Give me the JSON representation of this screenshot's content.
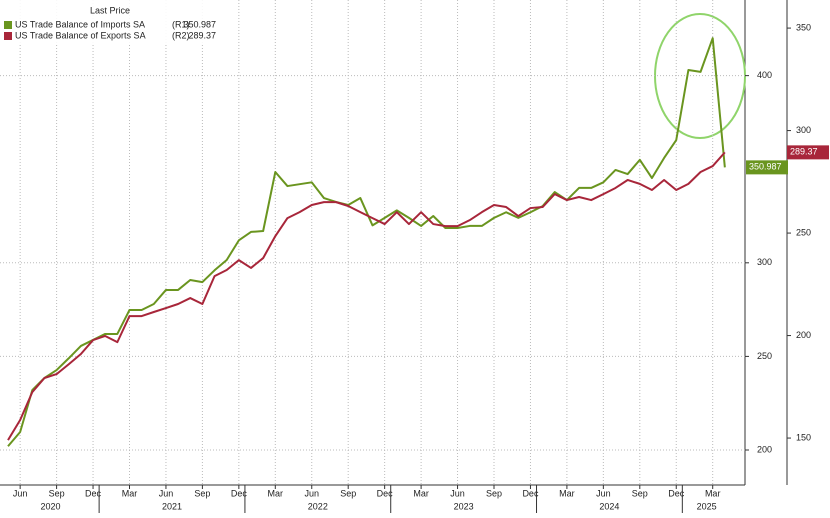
{
  "chart_data": {
    "type": "line",
    "legend_title": "Last Price",
    "categories": [
      null,
      "Jun",
      null,
      null,
      "Sep",
      null,
      null,
      "Dec",
      null,
      null,
      "Mar",
      null,
      null,
      "Jun",
      null,
      null,
      "Sep",
      null,
      null,
      "Dec",
      null,
      null,
      "Mar",
      null,
      null,
      "Jun",
      null,
      null,
      "Sep",
      null,
      null,
      "Dec",
      null,
      null,
      "Mar",
      null,
      null,
      "Jun",
      null,
      null,
      "Sep",
      null,
      null,
      "Dec",
      null,
      null,
      "Mar",
      null,
      null,
      "Jun",
      null,
      null,
      "Sep",
      null,
      null,
      "Dec",
      null,
      null,
      "Mar",
      null
    ],
    "years": [
      "2020",
      "2021",
      "2022",
      "2023",
      "2024",
      "2025"
    ],
    "series": [
      {
        "name": "US Trade Balance of Imports SA",
        "axis_tag": "(R1)",
        "color": "#6a951f",
        "axis": "y",
        "values": [
          202,
          209.6,
          232,
          238.5,
          242.7,
          249,
          255.6,
          258.8,
          262,
          262,
          274.8,
          274.8,
          278,
          285.5,
          285.5,
          290.8,
          289.7,
          296,
          301.5,
          312,
          316.5,
          317,
          348.5,
          341,
          342,
          343,
          334.6,
          332.5,
          330.9,
          334.6,
          320,
          324,
          328,
          324,
          319.7,
          325,
          318.6,
          318.6,
          319.7,
          319.7,
          324,
          327,
          324,
          327,
          330.3,
          337.8,
          333.5,
          340,
          340,
          343,
          349.6,
          347.4,
          355,
          345.3,
          356,
          365.6,
          403,
          402,
          420,
          350.987
        ]
      },
      {
        "name": "US Trade Balance of Exports SA",
        "axis_tag": "(R2)",
        "color": "#a8263a",
        "axis": "y2",
        "values": [
          149,
          158.8,
          172.4,
          179.3,
          181.2,
          186,
          191,
          197.8,
          199.8,
          196.8,
          209.5,
          209.5,
          211.5,
          213.4,
          215.4,
          218.3,
          215.4,
          229,
          232,
          236.8,
          233,
          237.8,
          248.5,
          257.3,
          260.2,
          263.7,
          265.1,
          265.1,
          263.2,
          260.2,
          257.3,
          254.4,
          260.2,
          254.4,
          260.2,
          254.4,
          253.4,
          253.4,
          256.3,
          260.2,
          263.7,
          262.7,
          258.3,
          262.2,
          262.7,
          269,
          266.1,
          267.6,
          266.1,
          269,
          272,
          275.9,
          274,
          271,
          275.9,
          271,
          274,
          279.8,
          282.7,
          289.37
        ]
      }
    ],
    "ylim": [
      181.3,
      440.4
    ],
    "yticks": [
      200,
      250,
      300,
      400
    ],
    "y2lim": [
      127.1,
      363.7
    ],
    "y2ticks": [
      150,
      200,
      250,
      300,
      350
    ],
    "grid": true
  }
}
